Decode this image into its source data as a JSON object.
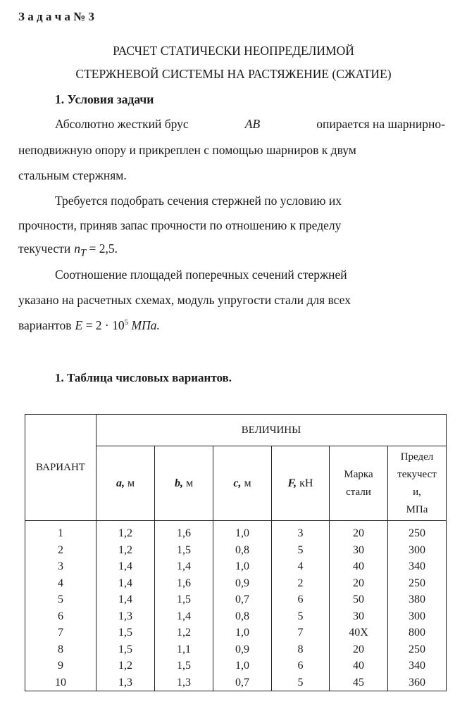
{
  "task_label": "З а д а ч а № 3",
  "title_line1": "РАСЧЕТ СТАТИЧЕСКИ НЕОПРЕДЕЛИМОЙ",
  "title_line2": "СТЕРЖНЕВОЙ СИСТЕМЫ НА РАСТЯЖЕНИЕ (СЖАТИЕ)",
  "section1": "1. Условия задачи",
  "para1": [
    "Абсолютно жесткий брус",
    "AB",
    "опирается на шарнирно-",
    "неподвижную опору и прикреплен с помощью шарниров к двум",
    "стальным стержням."
  ],
  "para2": [
    "Требуется подобрать сечения стержней по условию их",
    "прочности, приняв запас прочности по отношению к пределу",
    "текучести",
    "n",
    "T",
    "= 2,5."
  ],
  "para3": [
    "Соотношение площадей поперечных сечений стержней",
    "указано на расчетных схемах, модуль упругости стали для всех",
    "вариантов",
    "E",
    "= 2 · 10",
    "5",
    "МПа."
  ],
  "section2": "1.  Таблица числовых вариантов.",
  "table": {
    "variant": "ВАРИАНТ",
    "group": "ВЕЛИЧИНЫ",
    "cols": [
      {
        "sym": "a,",
        "unit": " м"
      },
      {
        "sym": "b,",
        "unit": " м"
      },
      {
        "sym": "c,",
        "unit": " м"
      },
      {
        "sym": "F,",
        "unit": " кН"
      }
    ],
    "marka": [
      "Марка",
      "стали"
    ],
    "predel": [
      "Предел",
      "текучест",
      "и,",
      "МПа"
    ],
    "rows": [
      [
        "1",
        "1,2",
        "1,6",
        "1,0",
        "3",
        "20",
        "250"
      ],
      [
        "2",
        "1,2",
        "1,5",
        "0,8",
        "5",
        "30",
        "300"
      ],
      [
        "3",
        "1,4",
        "1,4",
        "1,0",
        "4",
        "40",
        "340"
      ],
      [
        "4",
        "1,4",
        "1,6",
        "0,9",
        "2",
        "20",
        "250"
      ],
      [
        "5",
        "1,4",
        "1,5",
        "0,7",
        "6",
        "50",
        "380"
      ],
      [
        "6",
        "1,3",
        "1,4",
        "0,8",
        "5",
        "30",
        "300"
      ],
      [
        "7",
        "1,5",
        "1,2",
        "1,0",
        "7",
        "40Х",
        "800"
      ],
      [
        "8",
        "1,5",
        "1,1",
        "0,9",
        "8",
        "20",
        "250"
      ],
      [
        "9",
        "1,2",
        "1,5",
        "1,0",
        "6",
        "40",
        "340"
      ],
      [
        "10",
        "1,3",
        "1,3",
        "0,7",
        "5",
        "45",
        "360"
      ]
    ]
  }
}
